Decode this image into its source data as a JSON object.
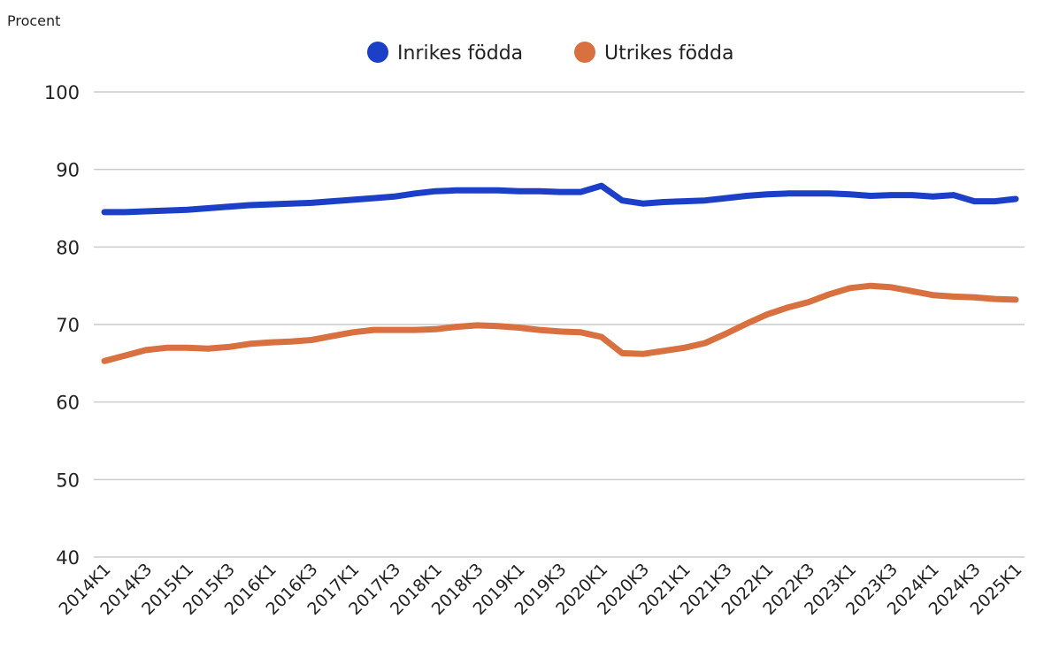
{
  "chart_data": {
    "type": "line",
    "ylabel": "Procent",
    "ylim": [
      40,
      100
    ],
    "yticks": [
      40,
      50,
      60,
      70,
      80,
      90,
      100
    ],
    "grid": true,
    "legend_position": "top-center",
    "x": [
      "2014K1",
      "2014K2",
      "2014K3",
      "2014K4",
      "2015K1",
      "2015K2",
      "2015K3",
      "2015K4",
      "2016K1",
      "2016K2",
      "2016K3",
      "2016K4",
      "2017K1",
      "2017K2",
      "2017K3",
      "2017K4",
      "2018K1",
      "2018K2",
      "2018K3",
      "2018K4",
      "2019K1",
      "2019K2",
      "2019K3",
      "2019K4",
      "2020K1",
      "2020K2",
      "2020K3",
      "2020K4",
      "2021K1",
      "2021K2",
      "2021K3",
      "2021K4",
      "2022K1",
      "2022K2",
      "2022K3",
      "2022K4",
      "2023K1",
      "2023K2",
      "2023K3",
      "2023K4",
      "2024K1",
      "2024K2",
      "2024K3",
      "2024K4",
      "2025K1"
    ],
    "xtick_labels": [
      "2014K1",
      "2014K3",
      "2015K1",
      "2015K3",
      "2016K1",
      "2016K3",
      "2017K1",
      "2017K3",
      "2018K1",
      "2018K3",
      "2019K1",
      "2019K3",
      "2020K1",
      "2020K3",
      "2021K1",
      "2021K3",
      "2022K1",
      "2022K3",
      "2023K1",
      "2023K3",
      "2024K1",
      "2024K3",
      "2025K1"
    ],
    "series": [
      {
        "name": "Inrikes födda",
        "color": "#1c3fc8",
        "values": [
          84.5,
          84.5,
          84.6,
          84.7,
          84.8,
          85.0,
          85.2,
          85.4,
          85.5,
          85.6,
          85.7,
          85.9,
          86.1,
          86.3,
          86.5,
          86.9,
          87.2,
          87.3,
          87.3,
          87.3,
          87.2,
          87.2,
          87.1,
          87.1,
          87.9,
          86.0,
          85.6,
          85.8,
          85.9,
          86.0,
          86.3,
          86.6,
          86.8,
          86.9,
          86.9,
          86.9,
          86.8,
          86.6,
          86.7,
          86.7,
          86.5,
          86.7,
          85.9,
          85.9,
          86.2
        ]
      },
      {
        "name": "Utrikes födda",
        "color": "#d87040",
        "values": [
          65.3,
          66.0,
          66.7,
          67.0,
          67.0,
          66.9,
          67.1,
          67.5,
          67.7,
          67.8,
          68.0,
          68.5,
          69.0,
          69.3,
          69.3,
          69.3,
          69.4,
          69.7,
          69.9,
          69.8,
          69.6,
          69.3,
          69.1,
          69.0,
          68.4,
          66.3,
          66.2,
          66.6,
          67.0,
          67.6,
          68.8,
          70.1,
          71.3,
          72.2,
          72.9,
          73.9,
          74.7,
          75.0,
          74.8,
          74.3,
          73.8,
          73.6,
          73.5,
          73.3,
          73.2
        ]
      }
    ]
  }
}
